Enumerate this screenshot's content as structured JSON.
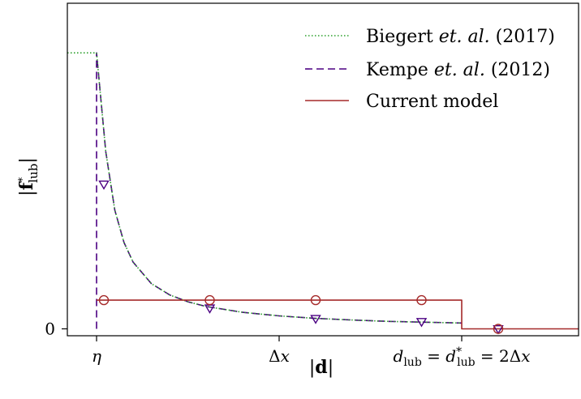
{
  "chart_data": {
    "type": "line",
    "xlabel": "|d|",
    "ylabel": "|f*lub|",
    "x_ticks": [
      {
        "label": "η",
        "value": 1.0
      },
      {
        "label": "Δx",
        "value": 2.0
      },
      {
        "label": "d_lub = d*_lub = 2Δx",
        "value": 3.0
      }
    ],
    "y_ticks": [
      {
        "label": "0",
        "value": 0
      }
    ],
    "xlim": [
      0.84,
      3.64
    ],
    "ylim": [
      -0.025,
      1.18
    ],
    "legend_position": "top-right",
    "series": [
      {
        "name": "Biegert et. al. (2017)",
        "color": "#2ca02c",
        "style": "dotted",
        "x": [
          0.84,
          1.0,
          1.0,
          1.05,
          1.1,
          1.15,
          1.2,
          1.3,
          1.4,
          1.5,
          1.6,
          1.8,
          2.0,
          2.2,
          2.4,
          2.6,
          2.8,
          3.0
        ],
        "y": [
          1.0,
          1.0,
          1.0,
          0.643,
          0.43,
          0.313,
          0.242,
          0.164,
          0.123,
          0.098,
          0.081,
          0.06,
          0.047,
          0.038,
          0.032,
          0.027,
          0.024,
          0.021
        ]
      },
      {
        "name": "Kempe et. al. (2012)",
        "color": "#4b0082",
        "style": "dashed",
        "x": [
          1.0,
          1.0,
          1.05,
          1.1,
          1.15,
          1.2,
          1.3,
          1.4,
          1.5,
          1.6,
          1.8,
          2.0,
          2.2,
          2.4,
          2.6,
          2.8,
          3.0
        ],
        "y": [
          0.0,
          1.0,
          0.643,
          0.43,
          0.313,
          0.242,
          0.164,
          0.123,
          0.098,
          0.081,
          0.06,
          0.047,
          0.038,
          0.032,
          0.027,
          0.024,
          0.021
        ],
        "markers": {
          "symbol": "triangle-down",
          "x": [
            1.04,
            1.62,
            2.2,
            2.78
          ],
          "y": [
            0.524,
            0.075,
            0.037,
            0.026
          ]
        }
      },
      {
        "name": "Current model",
        "color": "#a52a2a",
        "style": "solid",
        "x": [
          1.0,
          3.0,
          3.0,
          3.64
        ],
        "y": [
          0.104,
          0.104,
          0.0,
          0.0
        ],
        "markers": {
          "symbol": "circle",
          "x": [
            1.04,
            1.62,
            2.2,
            2.78
          ],
          "y": [
            0.104,
            0.104,
            0.104,
            0.104
          ]
        }
      }
    ],
    "extra_markers": [
      {
        "symbol": "triangle-down",
        "color": "#4b0082",
        "x": 3.2,
        "y": 0.0
      },
      {
        "symbol": "circle",
        "color": "#a52a2a",
        "x": 3.2,
        "y": 0.0
      }
    ]
  }
}
